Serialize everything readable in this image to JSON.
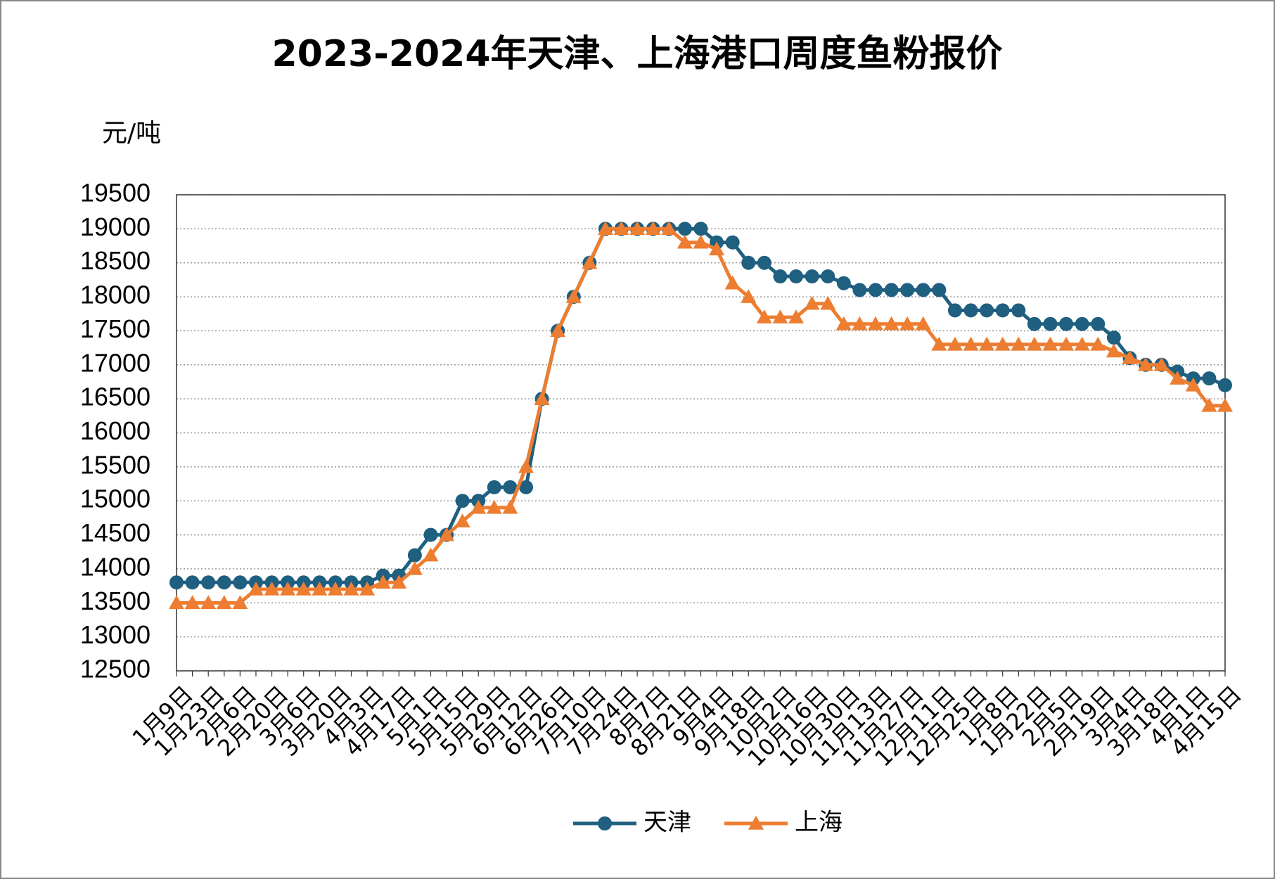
{
  "chart_data": {
    "type": "line",
    "title": "2023-2024年天津、上海港口周度鱼粉报价",
    "y_label": "元/吨",
    "categories": [
      "1月9日",
      null,
      "1月23日",
      null,
      "2月6日",
      null,
      "2月20日",
      null,
      "3月6日",
      null,
      "3月20日",
      null,
      "4月3日",
      null,
      "4月17日",
      null,
      "5月1日",
      null,
      "5月15日",
      null,
      "5月29日",
      null,
      "6月12日",
      null,
      "6月26日",
      null,
      "7月10日",
      null,
      "7月24日",
      null,
      "8月7日",
      null,
      "8月21日",
      null,
      "9月4日",
      null,
      "9月18日",
      null,
      "10月2日",
      null,
      "10月16日",
      null,
      "10月30日",
      null,
      "11月13日",
      null,
      "11月27日",
      null,
      "12月11日",
      null,
      "12月25日",
      null,
      "1月8日",
      null,
      "1月22日",
      null,
      "2月5日",
      null,
      "2月19日",
      null,
      "3月4日",
      null,
      "3月18日",
      null,
      "4月1日",
      null,
      "4月15日"
    ],
    "series": [
      {
        "name": "天津",
        "color": "#1f5f7f",
        "marker": "circle",
        "values": [
          13800,
          13800,
          13800,
          13800,
          13800,
          13800,
          13800,
          13800,
          13800,
          13800,
          13800,
          13800,
          13800,
          13900,
          13900,
          14200,
          14500,
          14500,
          15000,
          15000,
          15200,
          15200,
          15200,
          16500,
          17500,
          18000,
          18500,
          19000,
          19000,
          19000,
          19000,
          19000,
          19000,
          19000,
          18800,
          18800,
          18500,
          18500,
          18300,
          18300,
          18300,
          18300,
          18200,
          18100,
          18100,
          18100,
          18100,
          18100,
          18100,
          17800,
          17800,
          17800,
          17800,
          17800,
          17600,
          17600,
          17600,
          17600,
          17600,
          17400,
          17100,
          17000,
          17000,
          16900,
          16800,
          16800,
          16700
        ]
      },
      {
        "name": "上海",
        "color": "#ed7d31",
        "marker": "triangle",
        "values": [
          13500,
          13500,
          13500,
          13500,
          13500,
          13700,
          13700,
          13700,
          13700,
          13700,
          13700,
          13700,
          13700,
          13800,
          13800,
          14000,
          14200,
          14500,
          14700,
          14900,
          14900,
          14900,
          15500,
          16500,
          17500,
          18000,
          18500,
          19000,
          19000,
          19000,
          19000,
          19000,
          18800,
          18800,
          18700,
          18200,
          18000,
          17700,
          17700,
          17700,
          17900,
          17900,
          17600,
          17600,
          17600,
          17600,
          17600,
          17600,
          17300,
          17300,
          17300,
          17300,
          17300,
          17300,
          17300,
          17300,
          17300,
          17300,
          17300,
          17200,
          17100,
          17000,
          17000,
          16800,
          16700,
          16400,
          16400
        ]
      }
    ],
    "ylim": [
      12500,
      19500
    ],
    "yticks": [
      12500,
      13000,
      13500,
      14000,
      14500,
      15000,
      15500,
      16000,
      16500,
      17000,
      17500,
      18000,
      18500,
      19000,
      19500
    ],
    "grid": true,
    "legend": "bottom"
  }
}
